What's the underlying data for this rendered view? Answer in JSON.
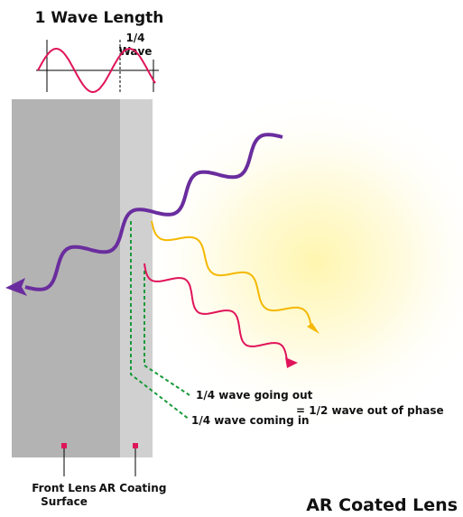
{
  "diagram": {
    "wave_length_label": "1 Wave Length",
    "quarter_wave_label": [
      "1/4",
      "Wave"
    ],
    "going_out_label": "1/4 wave going out",
    "coming_in_label": "1/4 wave coming in",
    "phase_label": "= 1/2 wave out of phase",
    "front_surface_label": [
      "Front Lens",
      "Surface"
    ],
    "coating_label": "AR Coating",
    "caption": "AR Coated Lens"
  }
}
